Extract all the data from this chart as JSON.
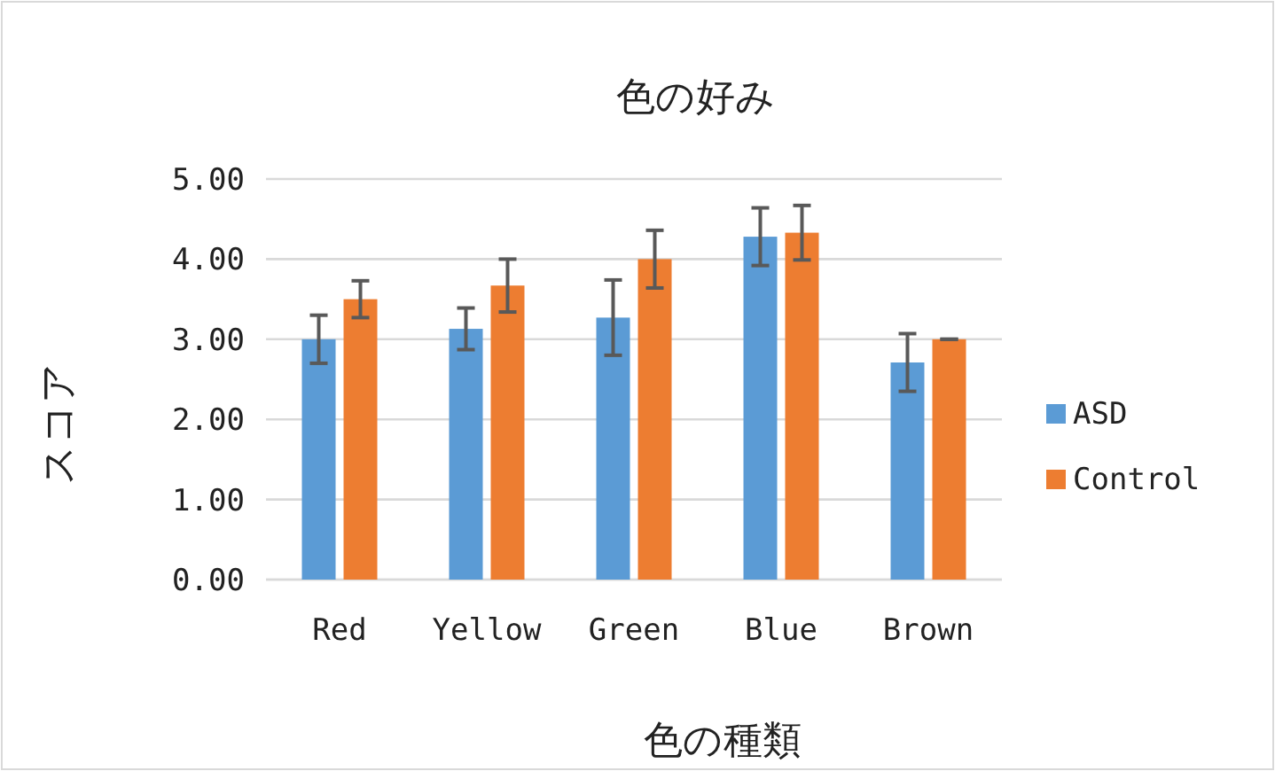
{
  "chart_data": {
    "type": "bar",
    "title": "色の好み",
    "xlabel": "色の種類",
    "ylabel": "スコア",
    "categories": [
      "Red",
      "Yellow",
      "Green",
      "Blue",
      "Brown"
    ],
    "series": [
      {
        "name": "ASD",
        "color": "#5b9bd5",
        "values": [
          3.0,
          3.13,
          3.27,
          4.28,
          2.71
        ],
        "errors": [
          0.3,
          0.26,
          0.47,
          0.36,
          0.36
        ]
      },
      {
        "name": "Control",
        "color": "#ed7d31",
        "values": [
          3.5,
          3.67,
          4.0,
          4.33,
          3.0
        ],
        "errors": [
          0.23,
          0.33,
          0.36,
          0.34,
          0
        ]
      }
    ],
    "ylim": [
      0,
      5
    ],
    "yticks": [
      {
        "value": 0,
        "label": "0.00"
      },
      {
        "value": 1,
        "label": "1.00"
      },
      {
        "value": 2,
        "label": "2.00"
      },
      {
        "value": 3,
        "label": "3.00"
      },
      {
        "value": 4,
        "label": "4.00"
      },
      {
        "value": 5,
        "label": "5.00"
      }
    ],
    "grid": "y",
    "legend": "right"
  }
}
